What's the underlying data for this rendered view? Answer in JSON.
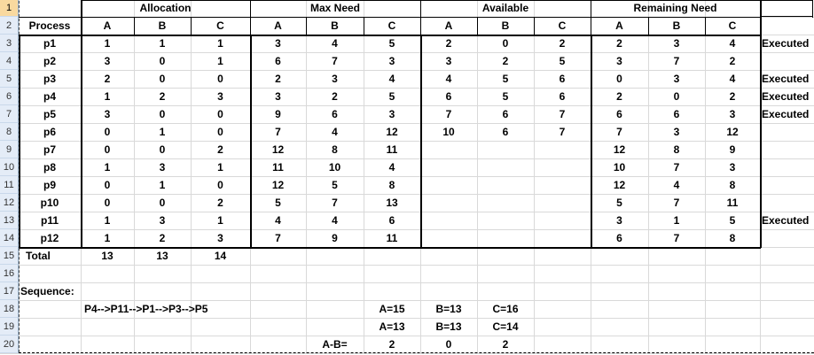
{
  "sheet": {
    "row_numbers": [
      "1",
      "2",
      "3",
      "4",
      "5",
      "6",
      "7",
      "8",
      "9",
      "10",
      "11",
      "12",
      "13",
      "14",
      "15",
      "16",
      "17",
      "18",
      "19",
      "20"
    ],
    "selected_row": "1",
    "group_headers": [
      "Allocation",
      "Max Need",
      "Available",
      "Remaining Need"
    ],
    "process_header": "Process",
    "abc": [
      "A",
      "B",
      "C"
    ],
    "processes": [
      {
        "name": "p1",
        "alloc": [
          "1",
          "1",
          "1"
        ],
        "max": [
          "3",
          "4",
          "5"
        ],
        "avail": [
          "2",
          "0",
          "2"
        ],
        "rem": [
          "2",
          "3",
          "4"
        ],
        "status": "Executed"
      },
      {
        "name": "p2",
        "alloc": [
          "3",
          "0",
          "1"
        ],
        "max": [
          "6",
          "7",
          "3"
        ],
        "avail": [
          "3",
          "2",
          "5"
        ],
        "rem": [
          "3",
          "7",
          "2"
        ],
        "status": ""
      },
      {
        "name": "p3",
        "alloc": [
          "2",
          "0",
          "0"
        ],
        "max": [
          "2",
          "3",
          "4"
        ],
        "avail": [
          "4",
          "5",
          "6"
        ],
        "rem": [
          "0",
          "3",
          "4"
        ],
        "status": "Executed"
      },
      {
        "name": "p4",
        "alloc": [
          "1",
          "2",
          "3"
        ],
        "max": [
          "3",
          "2",
          "5"
        ],
        "avail": [
          "6",
          "5",
          "6"
        ],
        "rem": [
          "2",
          "0",
          "2"
        ],
        "status": "Executed"
      },
      {
        "name": "p5",
        "alloc": [
          "3",
          "0",
          "0"
        ],
        "max": [
          "9",
          "6",
          "3"
        ],
        "avail": [
          "7",
          "6",
          "7"
        ],
        "rem": [
          "6",
          "6",
          "3"
        ],
        "status": "Executed"
      },
      {
        "name": "p6",
        "alloc": [
          "0",
          "1",
          "0"
        ],
        "max": [
          "7",
          "4",
          "12"
        ],
        "avail": [
          "10",
          "6",
          "7"
        ],
        "rem": [
          "7",
          "3",
          "12"
        ],
        "status": ""
      },
      {
        "name": "p7",
        "alloc": [
          "0",
          "0",
          "2"
        ],
        "max": [
          "12",
          "8",
          "11"
        ],
        "avail": [
          "",
          "",
          ""
        ],
        "rem": [
          "12",
          "8",
          "9"
        ],
        "status": ""
      },
      {
        "name": "p8",
        "alloc": [
          "1",
          "3",
          "1"
        ],
        "max": [
          "11",
          "10",
          "4"
        ],
        "avail": [
          "",
          "",
          ""
        ],
        "rem": [
          "10",
          "7",
          "3"
        ],
        "status": ""
      },
      {
        "name": "p9",
        "alloc": [
          "0",
          "1",
          "0"
        ],
        "max": [
          "12",
          "5",
          "8"
        ],
        "avail": [
          "",
          "",
          ""
        ],
        "rem": [
          "12",
          "4",
          "8"
        ],
        "status": ""
      },
      {
        "name": "p10",
        "alloc": [
          "0",
          "0",
          "2"
        ],
        "max": [
          "5",
          "7",
          "13"
        ],
        "avail": [
          "",
          "",
          ""
        ],
        "rem": [
          "5",
          "7",
          "11"
        ],
        "status": ""
      },
      {
        "name": "p11",
        "alloc": [
          "1",
          "3",
          "1"
        ],
        "max": [
          "4",
          "4",
          "6"
        ],
        "avail": [
          "",
          "",
          ""
        ],
        "rem": [
          "3",
          "1",
          "5"
        ],
        "status": "Executed"
      },
      {
        "name": "p12",
        "alloc": [
          "1",
          "2",
          "3"
        ],
        "max": [
          "7",
          "9",
          "11"
        ],
        "avail": [
          "",
          "",
          ""
        ],
        "rem": [
          "6",
          "7",
          "8"
        ],
        "status": ""
      }
    ],
    "total_label": "Total",
    "totals": [
      "13",
      "13",
      "14"
    ],
    "sequence_label": "Sequence:",
    "sequence": "P4-->P11-->P1-->P3-->P5",
    "calc_row1": [
      "A=15",
      "B=13",
      "C=16"
    ],
    "calc_row2": [
      "A=13",
      "B=13",
      "C=14"
    ],
    "diff_label": "A-B=",
    "diff": [
      "2",
      "0",
      "2"
    ]
  }
}
